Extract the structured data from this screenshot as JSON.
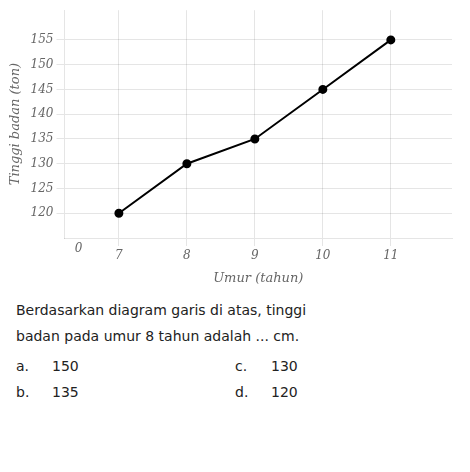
{
  "chart_data": {
    "type": "line",
    "x": [
      7,
      8,
      9,
      10,
      11
    ],
    "values": [
      120,
      130,
      135,
      145,
      155
    ],
    "color": "#000000",
    "marker": "circle",
    "xlabel": "Umur (tahun)",
    "ylabel": "Tinggi badan (ton)",
    "xlim": [
      6.2,
      11.9
    ],
    "ylim": [
      115,
      161
    ],
    "xticks": [
      7,
      8,
      9,
      10,
      11
    ],
    "yticks": [
      120,
      125,
      130,
      135,
      140,
      145,
      150,
      155
    ],
    "grid": true,
    "annotations": [
      "0",
      "Berdasarkan diagram garis di atas, tinggi",
      "badan pada umur 8 tahun adalah ... cm.",
      "a.",
      "150",
      "c.",
      "130",
      "b.",
      "135",
      "d.",
      "120"
    ]
  }
}
